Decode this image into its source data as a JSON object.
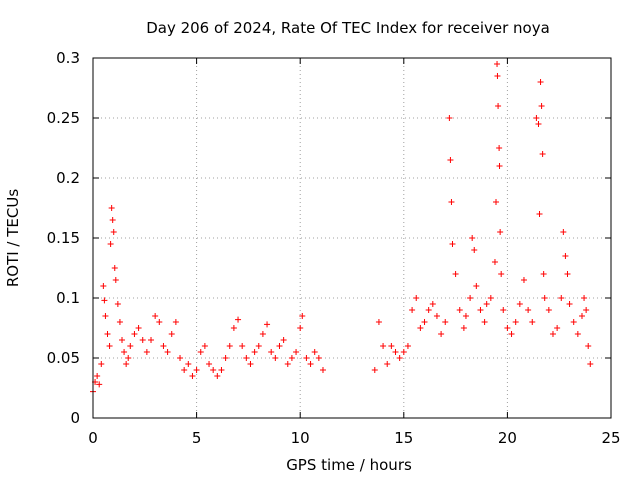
{
  "chart_data": {
    "type": "scatter",
    "title": "Day 206 of 2024, Rate Of TEC Index for receiver noya",
    "xlabel": "GPS time / hours",
    "ylabel": "ROTI / TECUs",
    "xlim": [
      0,
      25
    ],
    "ylim": [
      0,
      0.3
    ],
    "x_ticks": [
      0,
      5,
      10,
      15,
      20,
      25
    ],
    "x_tick_labels": [
      "0",
      "5",
      "10",
      "15",
      "20",
      "25"
    ],
    "y_ticks": [
      0,
      0.05,
      0.1,
      0.15,
      0.2,
      0.25,
      0.3
    ],
    "y_tick_labels": [
      "0",
      "0.05",
      "0.1",
      "0.15",
      "0.2",
      "0.25",
      "0.3"
    ],
    "grid": true,
    "marker": "+",
    "color": "#ff0000",
    "series": [
      {
        "points": [
          [
            0.0,
            0.022
          ],
          [
            0.1,
            0.03
          ],
          [
            0.2,
            0.035
          ],
          [
            0.3,
            0.028
          ],
          [
            0.4,
            0.045
          ],
          [
            0.5,
            0.11
          ],
          [
            0.55,
            0.098
          ],
          [
            0.6,
            0.085
          ],
          [
            0.7,
            0.07
          ],
          [
            0.8,
            0.06
          ],
          [
            0.85,
            0.145
          ],
          [
            0.9,
            0.175
          ],
          [
            0.95,
            0.165
          ],
          [
            1.0,
            0.155
          ],
          [
            1.05,
            0.125
          ],
          [
            1.1,
            0.115
          ],
          [
            1.2,
            0.095
          ],
          [
            1.3,
            0.08
          ],
          [
            1.4,
            0.065
          ],
          [
            1.5,
            0.055
          ],
          [
            1.6,
            0.045
          ],
          [
            1.7,
            0.05
          ],
          [
            1.8,
            0.06
          ],
          [
            2.0,
            0.07
          ],
          [
            2.2,
            0.075
          ],
          [
            2.4,
            0.065
          ],
          [
            2.6,
            0.055
          ],
          [
            2.8,
            0.065
          ],
          [
            3.0,
            0.085
          ],
          [
            3.2,
            0.08
          ],
          [
            3.4,
            0.06
          ],
          [
            3.6,
            0.055
          ],
          [
            3.8,
            0.07
          ],
          [
            4.0,
            0.08
          ],
          [
            4.2,
            0.05
          ],
          [
            4.4,
            0.04
          ],
          [
            4.6,
            0.045
          ],
          [
            4.8,
            0.035
          ],
          [
            5.0,
            0.04
          ],
          [
            5.2,
            0.055
          ],
          [
            5.4,
            0.06
          ],
          [
            5.6,
            0.045
          ],
          [
            5.8,
            0.04
          ],
          [
            6.0,
            0.035
          ],
          [
            6.2,
            0.04
          ],
          [
            6.4,
            0.05
          ],
          [
            6.6,
            0.06
          ],
          [
            6.8,
            0.075
          ],
          [
            7.0,
            0.082
          ],
          [
            7.2,
            0.06
          ],
          [
            7.4,
            0.05
          ],
          [
            7.6,
            0.045
          ],
          [
            7.8,
            0.055
          ],
          [
            8.0,
            0.06
          ],
          [
            8.2,
            0.07
          ],
          [
            8.4,
            0.078
          ],
          [
            8.6,
            0.055
          ],
          [
            8.8,
            0.05
          ],
          [
            9.0,
            0.06
          ],
          [
            9.2,
            0.065
          ],
          [
            9.4,
            0.045
          ],
          [
            9.6,
            0.05
          ],
          [
            9.8,
            0.055
          ],
          [
            10.0,
            0.075
          ],
          [
            10.1,
            0.085
          ],
          [
            10.3,
            0.05
          ],
          [
            10.5,
            0.045
          ],
          [
            10.7,
            0.055
          ],
          [
            10.9,
            0.05
          ],
          [
            11.1,
            0.04
          ],
          [
            13.6,
            0.04
          ],
          [
            13.8,
            0.08
          ],
          [
            14.0,
            0.06
          ],
          [
            14.2,
            0.045
          ],
          [
            14.4,
            0.06
          ],
          [
            14.6,
            0.055
          ],
          [
            14.8,
            0.05
          ],
          [
            15.0,
            0.055
          ],
          [
            15.2,
            0.06
          ],
          [
            15.4,
            0.09
          ],
          [
            15.6,
            0.1
          ],
          [
            15.8,
            0.075
          ],
          [
            16.0,
            0.08
          ],
          [
            16.2,
            0.09
          ],
          [
            16.4,
            0.095
          ],
          [
            16.6,
            0.085
          ],
          [
            16.8,
            0.07
          ],
          [
            17.0,
            0.08
          ],
          [
            17.2,
            0.25
          ],
          [
            17.25,
            0.215
          ],
          [
            17.3,
            0.18
          ],
          [
            17.35,
            0.145
          ],
          [
            17.5,
            0.12
          ],
          [
            17.7,
            0.09
          ],
          [
            17.9,
            0.075
          ],
          [
            18.0,
            0.085
          ],
          [
            18.2,
            0.1
          ],
          [
            18.3,
            0.15
          ],
          [
            18.4,
            0.14
          ],
          [
            18.5,
            0.11
          ],
          [
            18.7,
            0.09
          ],
          [
            18.9,
            0.08
          ],
          [
            19.0,
            0.095
          ],
          [
            19.2,
            0.1
          ],
          [
            19.4,
            0.13
          ],
          [
            19.45,
            0.18
          ],
          [
            19.5,
            0.295
          ],
          [
            19.52,
            0.285
          ],
          [
            19.55,
            0.26
          ],
          [
            19.6,
            0.225
          ],
          [
            19.62,
            0.21
          ],
          [
            19.65,
            0.155
          ],
          [
            19.7,
            0.12
          ],
          [
            19.8,
            0.09
          ],
          [
            20.0,
            0.075
          ],
          [
            20.2,
            0.07
          ],
          [
            20.4,
            0.08
          ],
          [
            20.6,
            0.095
          ],
          [
            20.8,
            0.115
          ],
          [
            21.0,
            0.09
          ],
          [
            21.2,
            0.08
          ],
          [
            21.4,
            0.25
          ],
          [
            21.5,
            0.245
          ],
          [
            21.55,
            0.17
          ],
          [
            21.6,
            0.28
          ],
          [
            21.65,
            0.26
          ],
          [
            21.7,
            0.22
          ],
          [
            21.75,
            0.12
          ],
          [
            21.8,
            0.1
          ],
          [
            22.0,
            0.09
          ],
          [
            22.2,
            0.07
          ],
          [
            22.4,
            0.075
          ],
          [
            22.6,
            0.1
          ],
          [
            22.7,
            0.155
          ],
          [
            22.8,
            0.135
          ],
          [
            22.9,
            0.12
          ],
          [
            23.0,
            0.095
          ],
          [
            23.2,
            0.08
          ],
          [
            23.4,
            0.07
          ],
          [
            23.6,
            0.085
          ],
          [
            23.7,
            0.1
          ],
          [
            23.8,
            0.09
          ],
          [
            23.9,
            0.06
          ],
          [
            24.0,
            0.045
          ]
        ]
      }
    ]
  }
}
